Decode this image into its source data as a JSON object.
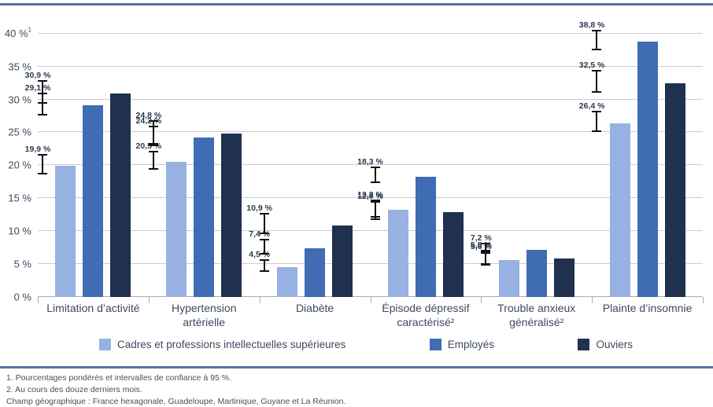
{
  "chart_data": {
    "type": "bar",
    "title": "",
    "categories": [
      "Limitation d’activité",
      "Hypertension\nartérielle",
      "Diabète",
      "Épisode dépressif\ncaractérisé²",
      "Trouble anxieux\ngénéralisé²",
      "Plainte d’insomnie"
    ],
    "series": [
      {
        "name": "Cadres et professions intellectuelles supérieures",
        "color": "#97b1e2",
        "values": [
          19.9,
          20.5,
          4.5,
          13.2,
          5.6,
          26.4
        ],
        "value_labels": [
          "19,9 %",
          "20,5 %",
          "4,5 %",
          "13,2 %",
          "5,6 %",
          "26,4 %"
        ],
        "ci_half_width": [
          1.3,
          1.2,
          0.7,
          1.1,
          0.8,
          1.4
        ]
      },
      {
        "name": "Employés",
        "color": "#3f6cb2",
        "values": [
          29.1,
          24.2,
          7.4,
          18.3,
          7.2,
          38.8
        ],
        "value_labels": [
          "29,1 %",
          "24,2 %",
          "7,4 %",
          "18,3 %",
          "7,2 %",
          "38,8 %"
        ],
        "ci_half_width": [
          1.5,
          1.3,
          0.9,
          1.0,
          0.6,
          1.3
        ]
      },
      {
        "name": "Ouviers",
        "color": "#20304f",
        "values": [
          30.9,
          24.8,
          10.9,
          12.9,
          5.8,
          32.5
        ],
        "value_labels": [
          "30,9 %",
          "24,8 %",
          "10,9 %",
          "12,9 %",
          "5,8 %",
          "32,5 %"
        ],
        "ci_half_width": [
          1.5,
          1.6,
          1.4,
          1.2,
          0.9,
          1.5
        ]
      }
    ],
    "y_axis": {
      "unit": "%",
      "min": 0,
      "scale_max": 42,
      "tick_step": 5,
      "ticks": [
        {
          "value": 0,
          "label": "0 %"
        },
        {
          "value": 5,
          "label": "5 %"
        },
        {
          "value": 10,
          "label": "10 %"
        },
        {
          "value": 15,
          "label": "15 %"
        },
        {
          "value": 20,
          "label": "20 %"
        },
        {
          "value": 25,
          "label": "25 %"
        },
        {
          "value": 30,
          "label": "30 %"
        },
        {
          "value": 35,
          "label": "35 %"
        },
        {
          "value": 40,
          "label": "40 %",
          "sup": "1"
        }
      ]
    },
    "grid": true,
    "error_bars": true,
    "legend_position": "bottom"
  },
  "legend": {
    "items": [
      {
        "label": "Cadres et professions intellectuelles supérieures",
        "color": "#97b1e2"
      },
      {
        "label": "Employés",
        "color": "#3f6cb2"
      },
      {
        "label": "Ouviers",
        "color": "#20304f"
      }
    ]
  },
  "footnotes": {
    "line1": "1. Pourcentages pondérés et intervalles de confiance à 95 %.",
    "line2": "2. Au cours des douze derniers mois.",
    "line3": "Champ géographique : France hexagonale, Guadeloupe, Martinique, Guyane et La Réunion."
  },
  "colors": {
    "divider": "#5b6e9e",
    "gridline": "#cccccc",
    "axis_text": "#3d4a5d",
    "value_label_text": "#2b3951",
    "error_bar": "#111111"
  }
}
